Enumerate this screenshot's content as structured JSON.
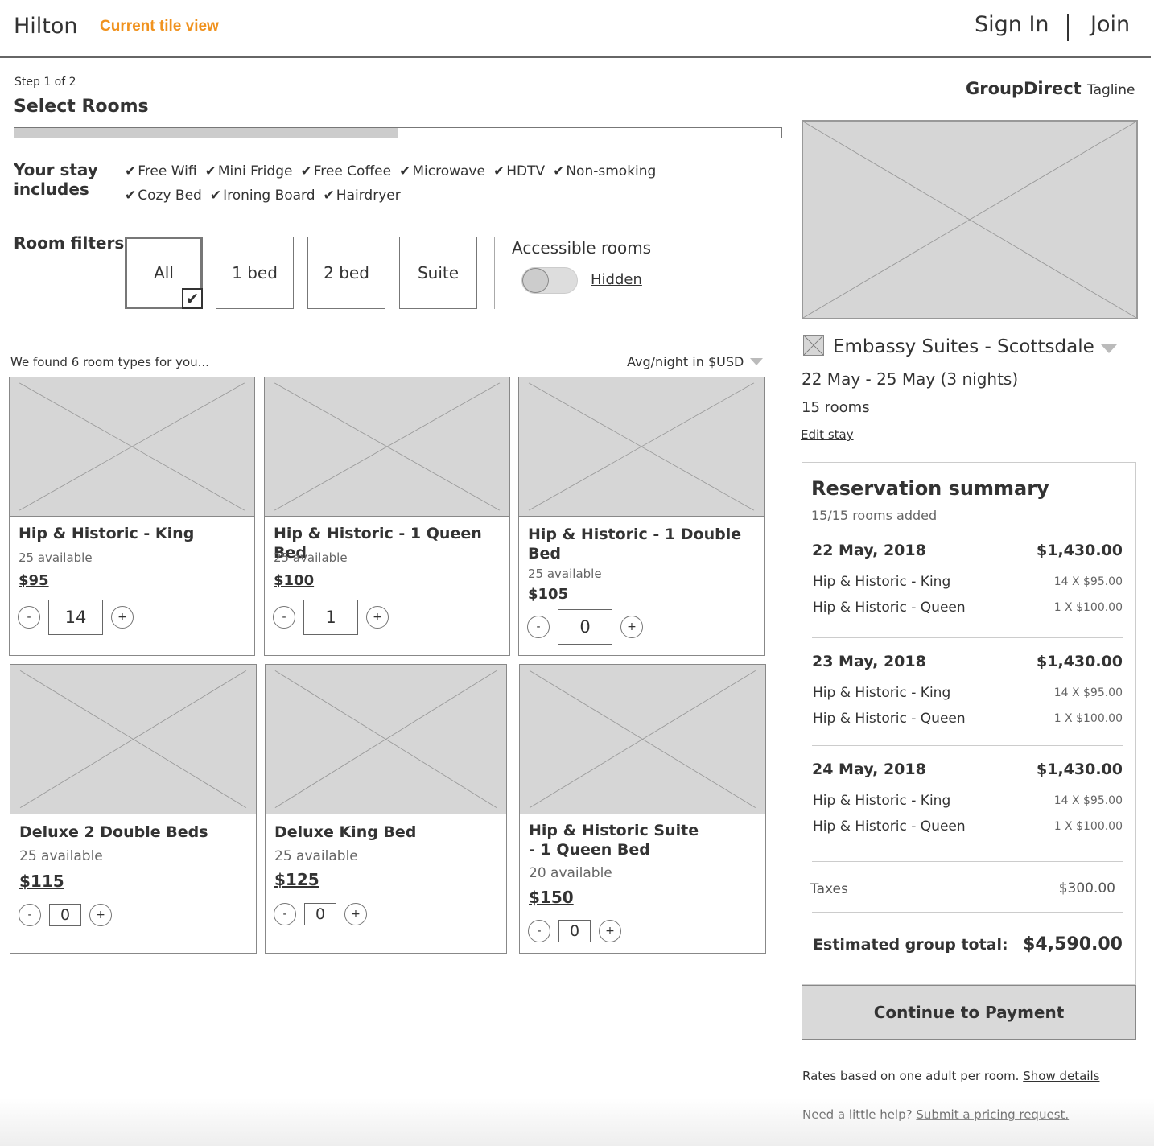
{
  "header": {
    "brand": "Hilton",
    "view_label": "Current tile view",
    "sign_in": "Sign In",
    "join": "Join"
  },
  "colors": {
    "accent": "#f0921e",
    "placeholder": "#d6d6d6",
    "border": "#888888"
  },
  "steps": {
    "step_label": "Step 1 of 2",
    "title": "Select Rooms",
    "progress_percent": 50
  },
  "stay": {
    "label": "Your stay includes",
    "amenities_row1": [
      "Free Wifi",
      "Mini Fridge",
      "Free Coffee",
      "Microwave",
      "HDTV",
      "Non-smoking"
    ],
    "amenities_row2": [
      "Cozy Bed",
      "Ironing Board",
      "Hairdryer"
    ]
  },
  "filters": {
    "label": "Room filters",
    "options": [
      "All",
      "1 bed",
      "2 bed",
      "Suite"
    ],
    "selected": "All",
    "accessible_label": "Accessible rooms",
    "accessible_state": "Hidden"
  },
  "results": {
    "found_text": "We found 6 room types for you...",
    "sort_label": "Avg/night in $USD"
  },
  "rooms": [
    {
      "name": "Hip & Historic - King",
      "available": "25 available",
      "price": "$95",
      "qty": "14"
    },
    {
      "name": "Hip & Historic - 1 Queen Bed",
      "available": "25 available",
      "price": "$100",
      "qty": "1"
    },
    {
      "name": "Hip & Historic - 1 Double Bed",
      "available": "25 available",
      "price": "$105",
      "qty": "0"
    },
    {
      "name": "Deluxe 2 Double Beds",
      "available": "25 available",
      "price": "$115",
      "qty": "0"
    },
    {
      "name": "Deluxe King Bed",
      "available": "25 available",
      "price": "$125",
      "qty": "0"
    },
    {
      "name": "Hip & Historic Suite - 1 Queen Bed",
      "available": "20 available",
      "price": "$150",
      "qty": "0"
    }
  ],
  "stepper": {
    "minus": "-",
    "plus": "+"
  },
  "brand_panel": {
    "name": "GroupDirect",
    "tagline": "Tagline"
  },
  "hotel": {
    "name": "Embassy Suites - Scottsdale",
    "dates": "22 May - 25 May (3 nights)",
    "rooms": "15  rooms",
    "edit_link": "Edit stay"
  },
  "summary": {
    "title": "Reservation summary",
    "subtitle": "15/15 rooms added",
    "days": [
      {
        "date": "22 May, 2018",
        "total": "$1,430.00",
        "lines": [
          {
            "name": "Hip & Historic - King",
            "price": "14 X $95.00"
          },
          {
            "name": "Hip & Historic - Queen",
            "price": "1 X $100.00"
          }
        ]
      },
      {
        "date": "23 May, 2018",
        "total": "$1,430.00",
        "lines": [
          {
            "name": "Hip & Historic - King",
            "price": "14 X $95.00"
          },
          {
            "name": "Hip & Historic - Queen",
            "price": "1 X $100.00"
          }
        ]
      },
      {
        "date": "24 May, 2018",
        "total": "$1,430.00",
        "lines": [
          {
            "name": "Hip & Historic - King",
            "price": "14 X $95.00"
          },
          {
            "name": "Hip & Historic - Queen",
            "price": "1 X $100.00"
          }
        ]
      }
    ],
    "taxes_label": "Taxes",
    "taxes_value": "$300.00",
    "total_label": "Estimated group total:",
    "total_value": "$4,590.00"
  },
  "continue_label": "Continue to Payment",
  "footer": {
    "rates_text": "Rates based on one adult per room.",
    "rates_link": "Show details",
    "help_text": "Need a little help?",
    "help_link": "Submit a pricing request."
  }
}
